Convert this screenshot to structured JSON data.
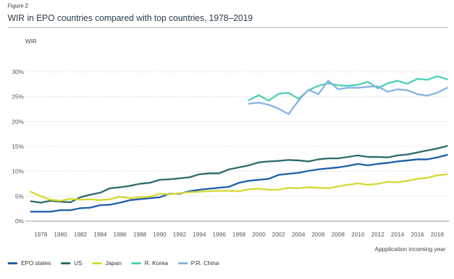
{
  "figure_label": "Figure 2",
  "colors": {
    "EPO states": "#1f5ea8",
    "US": "#2e6b6b",
    "Japan": "#d4d934",
    "R. Korea": "#4ed0b4",
    "P.R. China": "#86b3e3"
  },
  "chart_data": {
    "type": "line",
    "title": "WIR in EPO countries compared with top countries, 1978–2019",
    "ylabel": "WIR",
    "xlabel": "Appplication incoming year",
    "ylim": [
      0,
      32
    ],
    "xlim": [
      1976.5,
      2019.2
    ],
    "grid": true,
    "y_ticks": [
      0,
      5,
      10,
      15,
      20,
      25,
      30
    ],
    "y_tick_labels": [
      "0%",
      "5%",
      "10%",
      "15%",
      "20%",
      "25%",
      "30%"
    ],
    "x_ticks": [
      1978,
      1980,
      1982,
      1984,
      1986,
      1988,
      1990,
      1992,
      1994,
      1996,
      1998,
      2000,
      2002,
      2004,
      2006,
      2008,
      2010,
      2012,
      2014,
      2016,
      2018
    ],
    "x_tick_labels": [
      "1978",
      "1980",
      "1982",
      "1984",
      "1986",
      "1988",
      "1990",
      "1992",
      "1994",
      "1996",
      "1998",
      "2000",
      "2002",
      "2004",
      "2006",
      "2008",
      "2010",
      "2012",
      "2014",
      "2016",
      "2018"
    ],
    "legend_position": "bottom",
    "series": [
      {
        "name": "EPO states",
        "x": [
          1977,
          1978,
          1979,
          1980,
          1981,
          1982,
          1983,
          1984,
          1985,
          1986,
          1987,
          1988,
          1989,
          1990,
          1991,
          1992,
          1993,
          1994,
          1995,
          1996,
          1997,
          1998,
          1999,
          2000,
          2001,
          2002,
          2003,
          2004,
          2005,
          2006,
          2007,
          2008,
          2009,
          2010,
          2011,
          2012,
          2013,
          2014,
          2015,
          2016,
          2017,
          2018,
          2019
        ],
        "values": [
          1.9,
          1.9,
          1.9,
          2.2,
          2.2,
          2.6,
          2.7,
          3.2,
          3.3,
          3.7,
          4.2,
          4.4,
          4.6,
          4.8,
          5.5,
          5.5,
          6.0,
          6.3,
          6.5,
          6.7,
          6.9,
          7.7,
          8.1,
          8.3,
          8.5,
          9.3,
          9.5,
          9.7,
          10.1,
          10.4,
          10.6,
          10.8,
          11.1,
          11.5,
          11.2,
          11.5,
          11.7,
          12.0,
          12.2,
          12.4,
          12.4,
          12.8,
          13.3
        ]
      },
      {
        "name": "US",
        "x": [
          1977,
          1978,
          1979,
          1980,
          1981,
          1982,
          1983,
          1984,
          1985,
          1986,
          1987,
          1988,
          1989,
          1990,
          1991,
          1992,
          1993,
          1994,
          1995,
          1996,
          1997,
          1998,
          1999,
          2000,
          2001,
          2002,
          2003,
          2004,
          2005,
          2006,
          2007,
          2008,
          2009,
          2010,
          2011,
          2012,
          2013,
          2014,
          2015,
          2016,
          2017,
          2018,
          2019
        ],
        "values": [
          4.0,
          3.7,
          4.1,
          3.9,
          3.8,
          4.8,
          5.3,
          5.7,
          6.6,
          6.8,
          7.1,
          7.5,
          7.7,
          8.3,
          8.4,
          8.6,
          8.8,
          9.4,
          9.6,
          9.6,
          10.4,
          10.8,
          11.2,
          11.8,
          12.0,
          12.1,
          12.3,
          12.2,
          12.0,
          12.4,
          12.6,
          12.6,
          12.9,
          13.2,
          12.9,
          12.9,
          12.8,
          13.2,
          13.4,
          13.8,
          14.2,
          14.6,
          15.1
        ]
      },
      {
        "name": "Japan",
        "x": [
          1977,
          1978,
          1979,
          1980,
          1981,
          1982,
          1983,
          1984,
          1985,
          1986,
          1987,
          1988,
          1989,
          1990,
          1991,
          1992,
          1993,
          1994,
          1995,
          1996,
          1997,
          1998,
          1999,
          2000,
          2001,
          2002,
          2003,
          2004,
          2005,
          2006,
          2007,
          2008,
          2009,
          2010,
          2011,
          2012,
          2013,
          2014,
          2015,
          2016,
          2017,
          2018,
          2019
        ],
        "values": [
          5.9,
          5.0,
          4.3,
          4.1,
          4.5,
          4.3,
          4.4,
          4.2,
          4.4,
          4.9,
          4.6,
          4.8,
          4.9,
          5.5,
          5.4,
          5.6,
          5.8,
          5.9,
          6.0,
          6.1,
          6.1,
          6.0,
          6.4,
          6.5,
          6.3,
          6.3,
          6.7,
          6.6,
          6.8,
          6.7,
          6.6,
          7.0,
          7.3,
          7.6,
          7.3,
          7.5,
          7.9,
          7.8,
          8.1,
          8.5,
          8.7,
          9.2,
          9.4
        ]
      },
      {
        "name": "R. Korea",
        "x": [
          1999,
          2000,
          2001,
          2002,
          2003,
          2004,
          2005,
          2006,
          2007,
          2008,
          2009,
          2010,
          2011,
          2012,
          2013,
          2014,
          2015,
          2016,
          2017,
          2018,
          2019
        ],
        "values": [
          24.3,
          25.3,
          24.2,
          25.6,
          25.8,
          24.6,
          26.3,
          27.2,
          27.7,
          27.3,
          27.2,
          27.4,
          28.0,
          26.7,
          27.7,
          28.2,
          27.6,
          28.6,
          28.4,
          29.1,
          28.5
        ]
      },
      {
        "name": "P.R. China",
        "x": [
          1999,
          2000,
          2001,
          2002,
          2003,
          2004,
          2005,
          2006,
          2007,
          2008,
          2009,
          2010,
          2011,
          2012,
          2013,
          2014,
          2015,
          2016,
          2017,
          2018,
          2019
        ],
        "values": [
          23.6,
          23.8,
          23.4,
          22.6,
          21.5,
          24.2,
          26.4,
          25.5,
          28.2,
          26.5,
          26.8,
          26.8,
          27.0,
          27.1,
          26.0,
          26.5,
          26.3,
          25.5,
          25.2,
          25.8,
          26.8
        ]
      }
    ]
  }
}
